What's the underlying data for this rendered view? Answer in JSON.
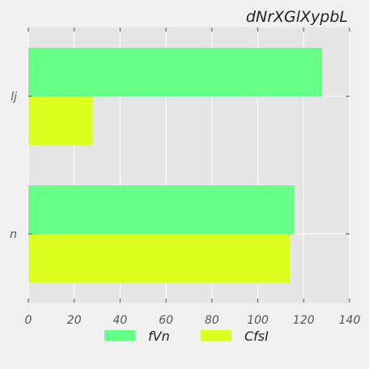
{
  "chart_data": {
    "type": "bar",
    "orientation": "horizontal",
    "title": "dNrXGlXypbL",
    "xlabel": "",
    "ylabel": "",
    "categories": [
      "lj",
      "n"
    ],
    "series": [
      {
        "name": "fVn",
        "values": [
          128,
          116
        ],
        "color": "#66ff88"
      },
      {
        "name": "CfsI",
        "values": [
          28,
          114
        ],
        "color": "#dcff1e"
      }
    ],
    "xlim": [
      0,
      140
    ],
    "xticks": [
      0,
      20,
      40,
      60,
      80,
      100,
      120,
      140
    ],
    "grid": true,
    "legend_position": "bottom"
  }
}
